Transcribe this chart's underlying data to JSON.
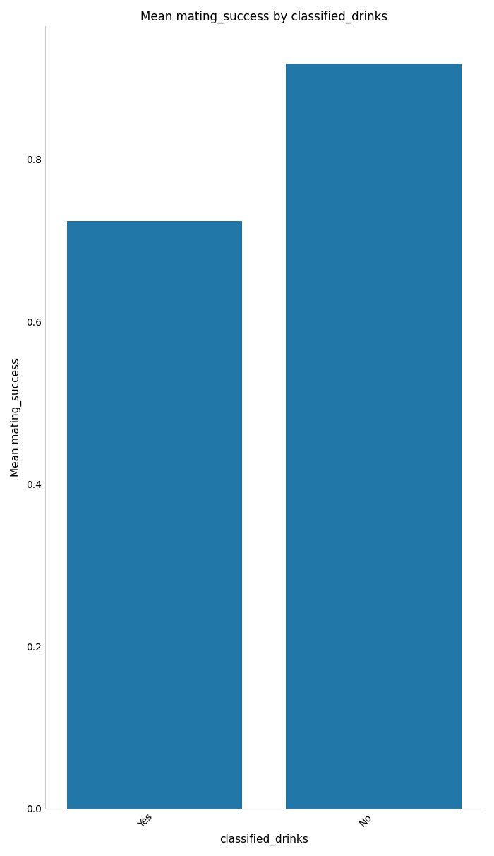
{
  "categories": [
    "Yes",
    "No"
  ],
  "values": [
    0.724,
    0.918
  ],
  "bar_color": "#2077A8",
  "title": "Mean mating_success by classified_drinks",
  "xlabel": "classified_drinks",
  "ylabel": "Mean mating_success",
  "title_fontsize": 12,
  "label_fontsize": 11,
  "tick_fontsize": 10,
  "bar_width": 0.8
}
